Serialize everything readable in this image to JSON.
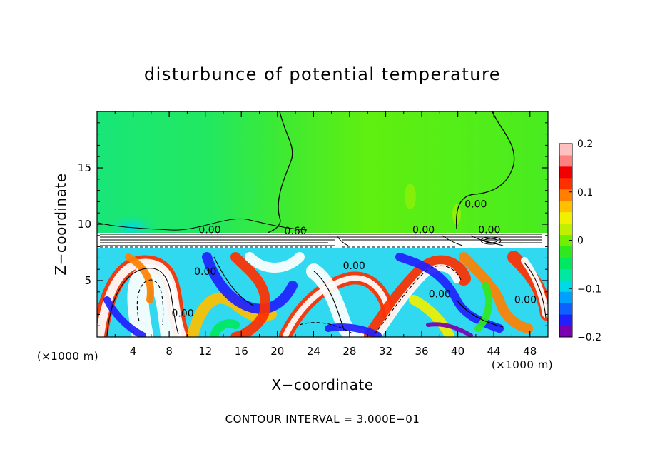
{
  "chart_data": {
    "type": "heatmap",
    "title": "disturbunce of potential temperature",
    "xlabel": "X−coordinate",
    "ylabel": "Z−coordinate",
    "x_unit": "(×1000 m)",
    "x_unit_right": "(×1000 m)",
    "footer": "CONTOUR INTERVAL = 3.000E−01",
    "xlim": [
      0,
      50
    ],
    "ylim": [
      0,
      20
    ],
    "x_ticks": [
      4,
      8,
      12,
      16,
      20,
      24,
      28,
      32,
      36,
      40,
      44,
      48
    ],
    "y_ticks": [
      5,
      10,
      15
    ],
    "colorbar": {
      "min": -0.2,
      "max": 0.2,
      "ticks": [
        0.2,
        0.1,
        0,
        -0.1,
        -0.2
      ],
      "tick_labels": [
        "0.2",
        "0.1",
        "0",
        "−0.1",
        "−0.2"
      ],
      "colors": [
        "#7a00b0",
        "#2020ff",
        "#1060ff",
        "#00a0ff",
        "#00d8e8",
        "#00e8a0",
        "#00e860",
        "#30e820",
        "#70f000",
        "#c0f000",
        "#f0f000",
        "#ffc000",
        "#ff8000",
        "#ff3000",
        "#f00000",
        "#ff8080",
        "#ffc0c0"
      ]
    },
    "contour_labels": [
      {
        "text": "0.00",
        "x": 12.5,
        "z": 9.2
      },
      {
        "text": "0.60",
        "x": 22.0,
        "z": 9.1
      },
      {
        "text": "0.00",
        "x": 36.2,
        "z": 9.2
      },
      {
        "text": "0.00",
        "x": 42.0,
        "z": 11.5
      },
      {
        "text": "0.00",
        "x": 43.5,
        "z": 9.2
      },
      {
        "text": "0.00",
        "x": 28.5,
        "z": 6.0
      },
      {
        "text": "0.00",
        "x": 12.0,
        "z": 5.5
      },
      {
        "text": "0.00",
        "x": 9.5,
        "z": 1.8
      },
      {
        "text": "0.00",
        "x": 38.0,
        "z": 3.5
      },
      {
        "text": "0.00",
        "x": 47.5,
        "z": 3.0
      }
    ],
    "regions": [
      {
        "name": "upper-left",
        "x": [
          0,
          20
        ],
        "z": [
          9,
          20
        ],
        "value": -0.03
      },
      {
        "name": "upper-right",
        "x": [
          20,
          50
        ],
        "z": [
          9,
          20
        ],
        "value": 0.02
      },
      {
        "name": "low-anomaly",
        "x": [
          2,
          6
        ],
        "z": [
          9,
          11
        ],
        "value": -0.08
      }
    ]
  }
}
